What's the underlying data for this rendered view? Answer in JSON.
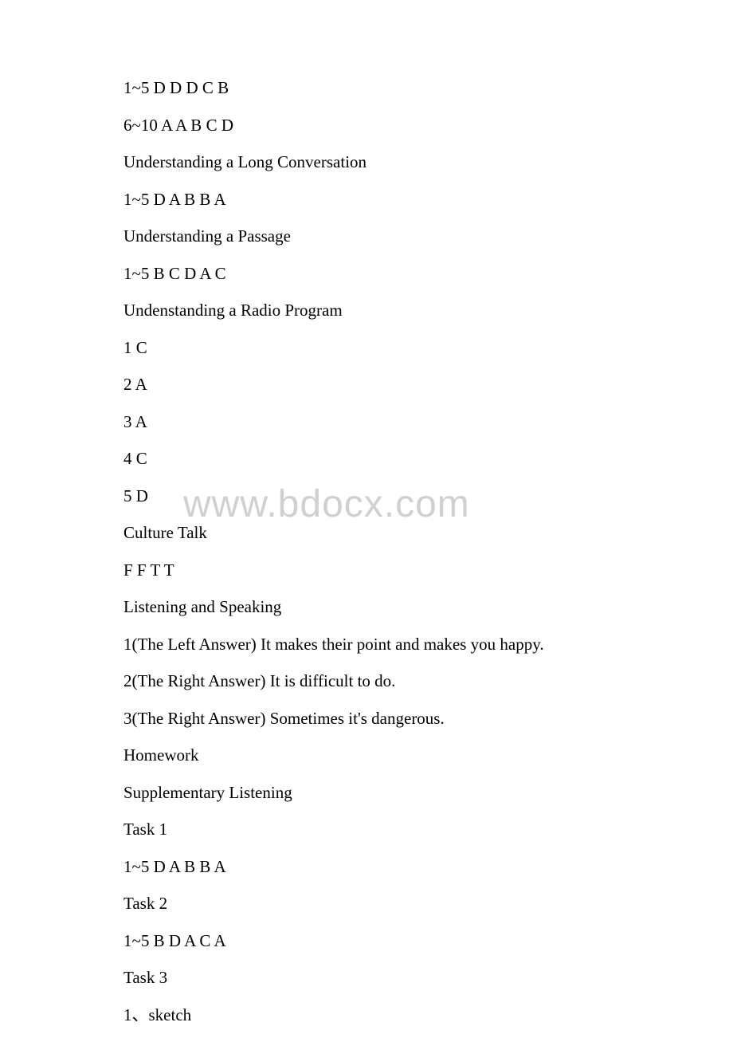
{
  "watermark": "www.bdocx.com",
  "lines": [
    "1~5  D D D C B",
    "6~10 A A B C D",
    "Understanding a Long Conversation",
    "1~5  D A B B A",
    "Understanding a Passage",
    "1~5  B C D A C",
    "Undenstanding a Radio Program",
    "1  C",
    "2  A",
    "3  A",
    "4  C",
    "5  D",
    "Culture Talk",
    "F F T T",
    "Listening and Speaking",
    "1(The Left Answer)  It makes their point and makes you happy.",
    "2(The Right Answer) It is difficult to do.",
    "3(The Right Answer) Sometimes it's dangerous.",
    "Homework",
    "Supplementary Listening",
    "Task 1",
    "1~5  D A B B A",
    "Task 2",
    "1~5  B D A C A",
    "Task 3",
    "1、sketch"
  ]
}
